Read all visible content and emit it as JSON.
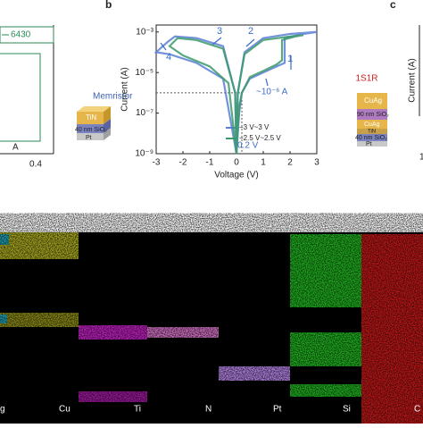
{
  "chart_data": {
    "type": "line",
    "x_label": "Voltage (V)",
    "y_label": "Current (A)",
    "log_y": true,
    "xlim": [
      -3,
      3
    ],
    "xticks": [
      -3,
      -2,
      -1,
      0,
      1,
      2,
      3
    ],
    "ylim": [
      1e-09,
      0.0022
    ],
    "yticks": [
      {
        "value": 1e-09,
        "label": "10⁻⁹"
      },
      {
        "value": 1e-07,
        "label": "10⁻⁷"
      },
      {
        "value": 1e-05,
        "label": "10⁻⁵"
      },
      {
        "value": 0.001,
        "label": "10⁻³"
      }
    ],
    "series": [
      {
        "name": "−3 V~3 V",
        "color": "#5b7fd6",
        "x": [
          0,
          0.1,
          0.2,
          0.5,
          1,
          1.5,
          1.8,
          1.8,
          2.5,
          3,
          2,
          1,
          0.3,
          0.05,
          0,
          -0.05,
          -0.5,
          -1.5,
          -2.3,
          -2.6,
          -3,
          -2.5,
          -1.5,
          -0.5,
          0
        ],
        "values": [
          1e-09,
          1e-07,
          1e-06,
          5e-06,
          1e-05,
          2e-05,
          3e-05,
          0.0005,
          0.0008,
          0.001,
          0.0008,
          0.0005,
          0.0001,
          1e-06,
          1e-09,
          1e-06,
          0.0002,
          0.0005,
          0.0006,
          0.0003,
          0.0001,
          8e-05,
          3e-05,
          5e-06,
          1e-09
        ]
      },
      {
        "name": "−2.5 V~2.5 V",
        "color": "#3a9a6a",
        "x": [
          0,
          0.1,
          0.2,
          0.5,
          1,
          1.5,
          1.7,
          1.7,
          2.2,
          2.5,
          2,
          1,
          0.3,
          0.05,
          0,
          -0.05,
          -0.5,
          -1.5,
          -2.2,
          -2.5,
          -2,
          -1,
          -0.3,
          0
        ],
        "values": [
          1e-09,
          2e-07,
          1e-06,
          6e-06,
          1.2e-05,
          2.5e-05,
          4e-05,
          0.0004,
          0.0006,
          0.0007,
          0.0006,
          0.0004,
          8e-05,
          1e-06,
          1e-09,
          1e-06,
          0.00015,
          0.0004,
          0.0005,
          0.0002,
          7e-05,
          2e-05,
          3e-06,
          1e-09
        ]
      }
    ],
    "annotations": [
      "3",
      "2",
      "1",
      "4",
      "~10⁻⁶ A",
      "0.2 V"
    ]
  },
  "panels": {
    "b": "b",
    "c": "c",
    "left_value": "6430",
    "left_tick": "0.4",
    "left_unit": "A",
    "right_tick": "1"
  },
  "memristor": {
    "title": "Memristor",
    "layers": [
      "TiN",
      "40 nm SiO₂",
      "Pt"
    ]
  },
  "s1r": {
    "title": "1S1R",
    "layers": [
      "CuAg",
      "90 nm SiO₂",
      "CuAg",
      "TiN",
      "40 nm SiO₂",
      "Pt"
    ],
    "y_label": "Current (A)"
  },
  "eds": {
    "labels": [
      "g",
      "Cu",
      "Ti",
      "N",
      "Pt",
      "Si",
      "C"
    ]
  }
}
